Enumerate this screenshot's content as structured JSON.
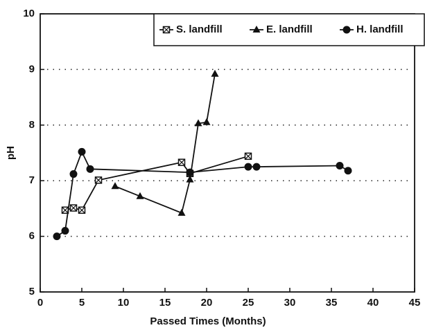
{
  "chart_data": {
    "type": "line",
    "xlabel": "Passed Times (Months)",
    "ylabel": "pH",
    "xlim": [
      0,
      45
    ],
    "xticks": [
      0,
      5,
      10,
      15,
      20,
      25,
      30,
      35,
      40,
      45
    ],
    "ylim": [
      5,
      10
    ],
    "yticks": [
      5,
      6,
      7,
      8,
      9,
      10
    ],
    "grid": true,
    "legend": "upper right",
    "series": [
      {
        "name": "S. landfill",
        "color": "#111111",
        "marker": "square",
        "x": [
          3,
          4,
          5,
          7,
          17,
          18,
          25
        ],
        "values": [
          6.47,
          6.51,
          6.47,
          7.01,
          7.33,
          7.13,
          7.44
        ]
      },
      {
        "name": "E. landfill",
        "color": "#111111",
        "marker": "triangle",
        "x": [
          9,
          12,
          17,
          18,
          19,
          20,
          21
        ],
        "values": [
          6.9,
          6.72,
          6.42,
          7.02,
          8.03,
          8.05,
          8.92
        ]
      },
      {
        "name": "H. landfill",
        "color": "#111111",
        "marker": "circle",
        "x": [
          2,
          3,
          4,
          5,
          6,
          18,
          25,
          26,
          36,
          37
        ],
        "values": [
          6.0,
          6.1,
          7.12,
          7.52,
          7.21,
          7.15,
          7.25,
          7.25,
          7.27,
          7.18
        ]
      }
    ]
  }
}
